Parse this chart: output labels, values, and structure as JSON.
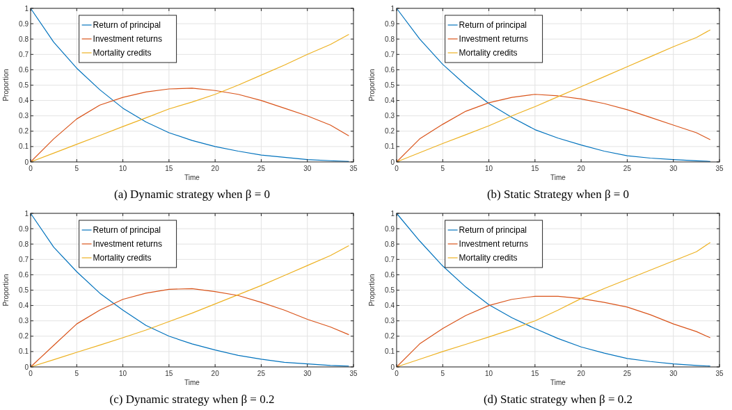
{
  "chart_data": [
    {
      "type": "line",
      "title": "(a) Dynamic strategy when β = 0",
      "xlabel": "Time",
      "ylabel": "Proportion",
      "xlim": [
        0,
        35
      ],
      "ylim": [
        0,
        1
      ],
      "xticks": [
        0,
        5,
        10,
        15,
        20,
        25,
        30,
        35
      ],
      "yticks": [
        0,
        0.1,
        0.2,
        0.3,
        0.4,
        0.5,
        0.6,
        0.7,
        0.8,
        0.9,
        1
      ],
      "grid": true,
      "legend": "top left",
      "x": [
        0,
        2.5,
        5,
        7.5,
        10,
        12.5,
        15,
        17.5,
        20,
        22.5,
        25,
        27.5,
        30,
        32.5,
        34.5
      ],
      "series": [
        {
          "name": "Return of principal",
          "color": "#0072bd",
          "values": [
            1,
            0.78,
            0.61,
            0.47,
            0.35,
            0.26,
            0.19,
            0.14,
            0.1,
            0.07,
            0.045,
            0.03,
            0.015,
            0.008,
            0.003
          ]
        },
        {
          "name": "Investment returns",
          "color": "#d95319",
          "values": [
            0,
            0.15,
            0.28,
            0.37,
            0.42,
            0.455,
            0.475,
            0.48,
            0.465,
            0.44,
            0.4,
            0.35,
            0.3,
            0.24,
            0.17
          ]
        },
        {
          "name": "Mortality credits",
          "color": "#edb120",
          "values": [
            0,
            0.057,
            0.115,
            0.172,
            0.23,
            0.287,
            0.345,
            0.39,
            0.44,
            0.5,
            0.565,
            0.63,
            0.7,
            0.765,
            0.83
          ]
        }
      ]
    },
    {
      "type": "line",
      "title": "(b) Static Strategy when β = 0",
      "xlabel": "Time",
      "ylabel": "Proportion",
      "xlim": [
        0,
        35
      ],
      "ylim": [
        0,
        1
      ],
      "xticks": [
        0,
        5,
        10,
        15,
        20,
        25,
        30,
        35
      ],
      "yticks": [
        0,
        0.1,
        0.2,
        0.3,
        0.4,
        0.5,
        0.6,
        0.7,
        0.8,
        0.9,
        1
      ],
      "grid": true,
      "legend": "top left",
      "x": [
        0,
        2.5,
        5,
        7.5,
        10,
        12.5,
        15,
        17.5,
        20,
        22.5,
        25,
        27.5,
        30,
        32.5,
        34
      ],
      "series": [
        {
          "name": "Return of principal",
          "color": "#0072bd",
          "values": [
            1,
            0.8,
            0.635,
            0.5,
            0.38,
            0.29,
            0.21,
            0.155,
            0.11,
            0.07,
            0.04,
            0.025,
            0.015,
            0.007,
            0.003
          ]
        },
        {
          "name": "Investment returns",
          "color": "#d95319",
          "values": [
            0,
            0.15,
            0.245,
            0.33,
            0.385,
            0.42,
            0.44,
            0.43,
            0.41,
            0.38,
            0.34,
            0.29,
            0.24,
            0.19,
            0.145
          ]
        },
        {
          "name": "Mortality credits",
          "color": "#edb120",
          "values": [
            0,
            0.06,
            0.12,
            0.177,
            0.235,
            0.3,
            0.36,
            0.425,
            0.49,
            0.555,
            0.62,
            0.685,
            0.75,
            0.81,
            0.86
          ]
        }
      ]
    },
    {
      "type": "line",
      "title": "(c) Dynamic strategy when β = 0.2",
      "xlabel": "Time",
      "ylabel": "Proportion",
      "xlim": [
        0,
        35
      ],
      "ylim": [
        0,
        1
      ],
      "xticks": [
        0,
        5,
        10,
        15,
        20,
        25,
        30,
        35
      ],
      "yticks": [
        0,
        0.1,
        0.2,
        0.3,
        0.4,
        0.5,
        0.6,
        0.7,
        0.8,
        0.9,
        1
      ],
      "grid": true,
      "legend": "top left",
      "x": [
        0,
        2.5,
        5,
        7.5,
        10,
        12.5,
        15,
        17.5,
        20,
        22.5,
        25,
        27.5,
        30,
        32.5,
        34.5
      ],
      "series": [
        {
          "name": "Return of principal",
          "color": "#0072bd",
          "values": [
            1,
            0.78,
            0.62,
            0.48,
            0.37,
            0.27,
            0.2,
            0.15,
            0.11,
            0.075,
            0.05,
            0.03,
            0.02,
            0.01,
            0.005
          ]
        },
        {
          "name": "Investment returns",
          "color": "#d95319",
          "values": [
            0,
            0.14,
            0.28,
            0.37,
            0.44,
            0.48,
            0.505,
            0.51,
            0.49,
            0.465,
            0.42,
            0.37,
            0.31,
            0.26,
            0.21
          ]
        },
        {
          "name": "Mortality credits",
          "color": "#edb120",
          "values": [
            0,
            0.047,
            0.095,
            0.142,
            0.19,
            0.24,
            0.295,
            0.35,
            0.41,
            0.47,
            0.53,
            0.595,
            0.66,
            0.725,
            0.79
          ]
        }
      ]
    },
    {
      "type": "line",
      "title": "(d) Static strategy when β = 0.2",
      "xlabel": "Time",
      "ylabel": "Proportion",
      "xlim": [
        0,
        35
      ],
      "ylim": [
        0,
        1
      ],
      "xticks": [
        0,
        5,
        10,
        15,
        20,
        25,
        30,
        35
      ],
      "yticks": [
        0,
        0.1,
        0.2,
        0.3,
        0.4,
        0.5,
        0.6,
        0.7,
        0.8,
        0.9,
        1
      ],
      "grid": true,
      "legend": "top left",
      "x": [
        0,
        2.5,
        5,
        7.5,
        10,
        12.5,
        15,
        17.5,
        20,
        22.5,
        25,
        27.5,
        30,
        32.5,
        34
      ],
      "series": [
        {
          "name": "Return of principal",
          "color": "#0072bd",
          "values": [
            1,
            0.82,
            0.657,
            0.52,
            0.405,
            0.32,
            0.25,
            0.185,
            0.13,
            0.09,
            0.055,
            0.035,
            0.02,
            0.01,
            0.005
          ]
        },
        {
          "name": "Investment returns",
          "color": "#d95319",
          "values": [
            0,
            0.15,
            0.25,
            0.335,
            0.4,
            0.44,
            0.46,
            0.46,
            0.445,
            0.42,
            0.39,
            0.34,
            0.28,
            0.23,
            0.19
          ]
        },
        {
          "name": "Mortality credits",
          "color": "#edb120",
          "values": [
            0,
            0.05,
            0.1,
            0.147,
            0.195,
            0.245,
            0.3,
            0.37,
            0.445,
            0.51,
            0.57,
            0.63,
            0.69,
            0.75,
            0.81
          ]
        }
      ]
    }
  ]
}
